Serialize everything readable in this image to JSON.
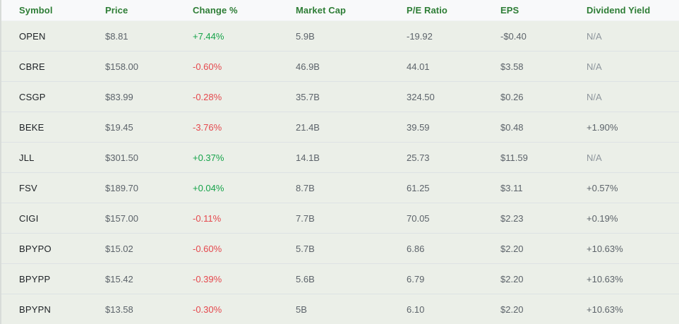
{
  "colors": {
    "header_bg": "#f8f9fa",
    "row_bg": "#ebefe8",
    "divider": "#dde2e4",
    "header_text": "#2d7d35",
    "symbol_text": "#1d2125",
    "value_text": "#5c636a",
    "muted_text": "#8d959c",
    "positive": "#16a34a",
    "negative": "#e5484d"
  },
  "table": {
    "columns": [
      {
        "id": "symbol",
        "label": "Symbol"
      },
      {
        "id": "price",
        "label": "Price"
      },
      {
        "id": "change",
        "label": "Change %"
      },
      {
        "id": "market_cap",
        "label": "Market Cap"
      },
      {
        "id": "pe_ratio",
        "label": "P/E Ratio"
      },
      {
        "id": "eps",
        "label": "EPS"
      },
      {
        "id": "dividend_yield",
        "label": "Dividend Yield"
      }
    ],
    "rows": [
      {
        "symbol": "OPEN",
        "price": "$8.81",
        "change": "+7.44%",
        "change_dir": "up",
        "market_cap": "5.9B",
        "pe_ratio": "-19.92",
        "eps": "-$0.40",
        "dividend_yield": "N/A"
      },
      {
        "symbol": "CBRE",
        "price": "$158.00",
        "change": "-0.60%",
        "change_dir": "down",
        "market_cap": "46.9B",
        "pe_ratio": "44.01",
        "eps": "$3.58",
        "dividend_yield": "N/A"
      },
      {
        "symbol": "CSGP",
        "price": "$83.99",
        "change": "-0.28%",
        "change_dir": "down",
        "market_cap": "35.7B",
        "pe_ratio": "324.50",
        "eps": "$0.26",
        "dividend_yield": "N/A"
      },
      {
        "symbol": "BEKE",
        "price": "$19.45",
        "change": "-3.76%",
        "change_dir": "down",
        "market_cap": "21.4B",
        "pe_ratio": "39.59",
        "eps": "$0.48",
        "dividend_yield": "+1.90%"
      },
      {
        "symbol": "JLL",
        "price": "$301.50",
        "change": "+0.37%",
        "change_dir": "up",
        "market_cap": "14.1B",
        "pe_ratio": "25.73",
        "eps": "$11.59",
        "dividend_yield": "N/A"
      },
      {
        "symbol": "FSV",
        "price": "$189.70",
        "change": "+0.04%",
        "change_dir": "up",
        "market_cap": "8.7B",
        "pe_ratio": "61.25",
        "eps": "$3.11",
        "dividend_yield": "+0.57%"
      },
      {
        "symbol": "CIGI",
        "price": "$157.00",
        "change": "-0.11%",
        "change_dir": "down",
        "market_cap": "7.7B",
        "pe_ratio": "70.05",
        "eps": "$2.23",
        "dividend_yield": "+0.19%"
      },
      {
        "symbol": "BPYPO",
        "price": "$15.02",
        "change": "-0.60%",
        "change_dir": "down",
        "market_cap": "5.7B",
        "pe_ratio": "6.86",
        "eps": "$2.20",
        "dividend_yield": "+10.63%"
      },
      {
        "symbol": "BPYPP",
        "price": "$15.42",
        "change": "-0.39%",
        "change_dir": "down",
        "market_cap": "5.6B",
        "pe_ratio": "6.79",
        "eps": "$2.20",
        "dividend_yield": "+10.63%"
      },
      {
        "symbol": "BPYPN",
        "price": "$13.58",
        "change": "-0.30%",
        "change_dir": "down",
        "market_cap": "5B",
        "pe_ratio": "6.10",
        "eps": "$2.20",
        "dividend_yield": "+10.63%"
      }
    ]
  }
}
